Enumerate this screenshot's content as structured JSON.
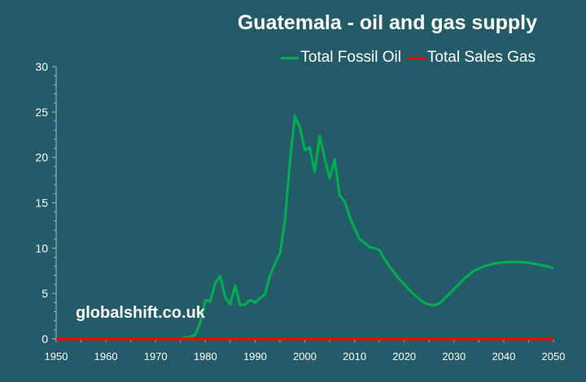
{
  "chart_data": {
    "type": "line",
    "title": "Guatemala - oil and gas supply",
    "xlabel": "",
    "ylabel": "",
    "xlim": [
      1950,
      2050
    ],
    "ylim": [
      0,
      30
    ],
    "x_ticks": [
      "1950",
      "1960",
      "1970",
      "1980",
      "1990",
      "2000",
      "2010",
      "2020",
      "2030",
      "2040",
      "2050"
    ],
    "y_ticks": [
      "0",
      "5",
      "10",
      "15",
      "20",
      "25",
      "30"
    ],
    "legend_position": "top-right",
    "grid": false,
    "series": [
      {
        "name": "Total Fossil Oil",
        "color": "#00b050",
        "x": [
          1950,
          1975,
          1976,
          1977,
          1978,
          1979,
          1980,
          1981,
          1982,
          1983,
          1984,
          1985,
          1986,
          1987,
          1988,
          1989,
          1990,
          1991,
          1992,
          1993,
          1994,
          1995,
          1996,
          1997,
          1998,
          1999,
          2000,
          2001,
          2002,
          2003,
          2004,
          2005,
          2006,
          2007,
          2008,
          2009,
          2010,
          2011,
          2012,
          2013,
          2014,
          2015,
          2016,
          2017,
          2018,
          2019,
          2020,
          2021,
          2022,
          2023,
          2024,
          2025,
          2026,
          2027,
          2028,
          2030,
          2032,
          2034,
          2036,
          2038,
          2040,
          2042,
          2044,
          2046,
          2048,
          2050
        ],
        "y": [
          0,
          0,
          0.2,
          0.2,
          0.5,
          1.8,
          4.3,
          4.1,
          6.2,
          6.9,
          4.6,
          3.8,
          5.9,
          3.7,
          3.8,
          4.3,
          4.0,
          4.5,
          4.9,
          7.0,
          8.3,
          9.4,
          13.0,
          19.5,
          24.6,
          23.3,
          20.8,
          21.1,
          18.4,
          22.4,
          19.9,
          17.7,
          19.8,
          15.8,
          15.2,
          13.5,
          12.2,
          11.0,
          10.6,
          10.1,
          10.0,
          9.8,
          8.8,
          8.0,
          7.3,
          6.6,
          6.0,
          5.4,
          4.9,
          4.4,
          4.0,
          3.8,
          3.7,
          3.9,
          4.4,
          5.5,
          6.6,
          7.5,
          8.0,
          8.3,
          8.45,
          8.5,
          8.45,
          8.3,
          8.1,
          7.8
        ]
      },
      {
        "name": "Total Sales Gas",
        "color": "#ff0000",
        "x": [
          1950,
          2050
        ],
        "y": [
          0,
          0
        ]
      }
    ],
    "annotations": [
      "globalshift.co.uk"
    ]
  }
}
